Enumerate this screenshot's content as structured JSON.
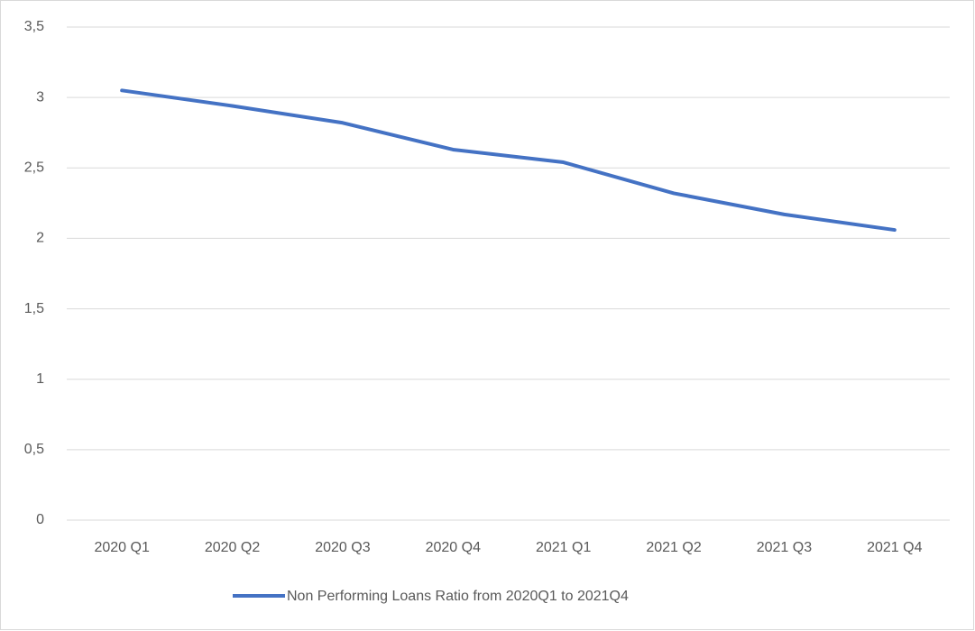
{
  "chart_data": {
    "type": "line",
    "categories": [
      "2020 Q1",
      "2020 Q2",
      "2020 Q3",
      "2020 Q4",
      "2021 Q1",
      "2021 Q2",
      "2021 Q3",
      "2021 Q4"
    ],
    "series": [
      {
        "name": "Non Performing Loans Ratio from 2020Q1 to 2021Q4",
        "color": "#4472c4",
        "values": [
          3.05,
          2.94,
          2.82,
          2.63,
          2.54,
          2.32,
          2.17,
          2.06
        ]
      }
    ],
    "ylim": [
      0,
      3.5
    ],
    "yticks": [
      0,
      {
        "value": 0.5,
        "label": "0,5"
      },
      1,
      {
        "value": 1.5,
        "label": "1,5"
      },
      2,
      {
        "value": 2.5,
        "label": "2,5"
      },
      3,
      {
        "value": 3.5,
        "label": "3,5"
      }
    ],
    "grid": true,
    "legend": "bottom"
  }
}
